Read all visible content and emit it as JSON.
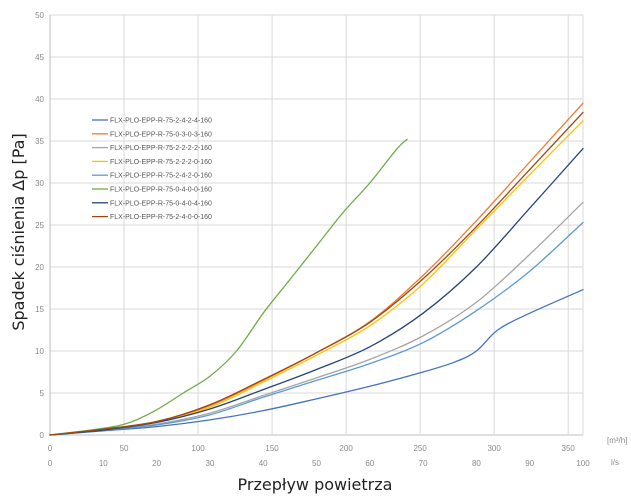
{
  "chart_data": {
    "type": "line",
    "title": "",
    "ylabel": "Spadek ciśnienia Δp [Pa]",
    "xlabel": "Przepływ powietrza",
    "ylim": [
      0,
      50
    ],
    "y_ticks": [
      "0",
      "5",
      "10",
      "15",
      "20",
      "25",
      "30",
      "35",
      "40",
      "45",
      "50"
    ],
    "x_primary": {
      "unit": "[m³/h]",
      "range": [
        0,
        360
      ],
      "ticks": [
        "0",
        "50",
        "100",
        "150",
        "200",
        "250",
        "300",
        "350"
      ]
    },
    "x_secondary": {
      "unit": "l/s",
      "range": [
        0,
        100
      ],
      "ticks": [
        "0",
        "10",
        "20",
        "30",
        "40",
        "50",
        "60",
        "70",
        "80",
        "90",
        "100"
      ]
    },
    "grid": true,
    "legend_position": "top-left",
    "series": [
      {
        "name": "FLX-PLO-EPP-R-75-2-4-2-4-160",
        "color": "#4472C4",
        "x": [
          0,
          10,
          20,
          30,
          40,
          50,
          60,
          70,
          76,
          80,
          84,
          90,
          100
        ],
        "y": [
          0,
          0.5,
          1.0,
          1.8,
          2.9,
          4.3,
          5.8,
          7.5,
          8.7,
          10.0,
          12.5,
          14.5,
          17.3
        ]
      },
      {
        "name": "FLX-PLO-EPP-R-75-0-3-0-3-160",
        "color": "#ED7D31",
        "x": [
          0,
          10,
          20,
          30,
          40,
          50,
          60,
          70,
          80,
          90,
          100
        ],
        "y": [
          0,
          0.7,
          1.6,
          3.5,
          6.5,
          9.8,
          13.5,
          19.0,
          25.5,
          32.5,
          39.5
        ]
      },
      {
        "name": "FLX-PLO-EPP-R-75-2-2-2-2-160",
        "color": "#A5A5A5",
        "x": [
          0,
          10,
          20,
          30,
          40,
          50,
          60,
          70,
          80,
          90,
          100
        ],
        "y": [
          0,
          0.6,
          1.3,
          2.6,
          4.7,
          6.8,
          9.0,
          11.8,
          15.8,
          21.5,
          27.7
        ]
      },
      {
        "name": "FLX-PLO-EPP-R-75-2-2-2-0-160",
        "color": "#FFC000",
        "x": [
          0,
          10,
          20,
          30,
          40,
          50,
          60,
          70,
          80,
          90,
          100
        ],
        "y": [
          0,
          0.7,
          1.5,
          3.3,
          6.3,
          9.5,
          13.0,
          18.0,
          24.5,
          31.0,
          37.4
        ]
      },
      {
        "name": "FLX-PLO-EPP-R-75-2-4-2-0-160",
        "color": "#5B9BD5",
        "x": [
          0,
          10,
          20,
          30,
          40,
          50,
          60,
          70,
          80,
          90,
          100
        ],
        "y": [
          0,
          0.6,
          1.2,
          2.4,
          4.5,
          6.5,
          8.5,
          11.0,
          14.8,
          19.5,
          25.3
        ]
      },
      {
        "name": "FLX-PLO-EPP-R-75-0-4-0-0-160",
        "color": "#70AD47",
        "x": [
          0,
          10,
          15,
          20,
          25,
          30,
          35,
          40,
          45,
          50,
          55,
          60,
          65,
          67
        ],
        "y": [
          0,
          0.8,
          1.5,
          3.0,
          5.0,
          7.0,
          10.0,
          14.5,
          18.5,
          22.5,
          26.5,
          30.0,
          34.0,
          35.2
        ]
      },
      {
        "name": "FLX-PLO-EPP-R-75-0-4-0-4-160",
        "color": "#264478",
        "x": [
          0,
          10,
          20,
          30,
          40,
          50,
          60,
          70,
          80,
          90,
          100
        ],
        "y": [
          0,
          0.6,
          1.5,
          3.1,
          5.4,
          7.8,
          10.5,
          14.5,
          20.0,
          27.0,
          34.1
        ]
      },
      {
        "name": "FLX-PLO-EPP-R-75-2-4-0-0-160",
        "color": "#9E480E",
        "x": [
          0,
          10,
          20,
          30,
          40,
          50,
          60,
          70,
          80,
          90,
          100
        ],
        "y": [
          0,
          0.7,
          1.6,
          3.6,
          6.6,
          9.8,
          13.4,
          18.6,
          24.8,
          31.6,
          38.4
        ]
      }
    ]
  }
}
